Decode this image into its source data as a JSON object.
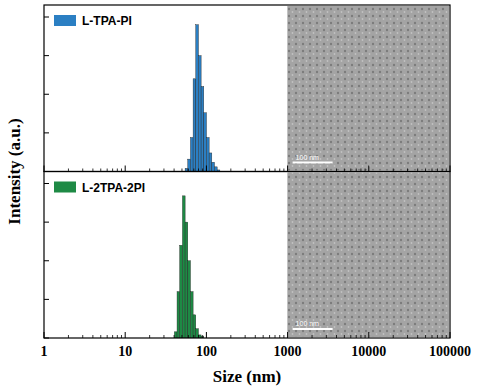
{
  "chart_data": [
    {
      "type": "histogram",
      "y_label": "Intensity (a.u.)",
      "log": "x",
      "legend": "upper left",
      "tick_labels": false,
      "xlim": [
        1,
        100000
      ],
      "xticks": [
        1,
        10,
        100,
        1000,
        10000,
        100000
      ],
      "ylim": [
        0,
        100
      ],
      "yticks": [
        0,
        25,
        50,
        75,
        100
      ],
      "bins": [
        50.7,
        54.7,
        59.0,
        63.6,
        68.6,
        74.0,
        79.8,
        86.1,
        92.9,
        100.2,
        108.1,
        116.6,
        125.8,
        135.7,
        146.4
      ],
      "series": [
        {
          "name": "L-TPA-PI",
          "color": "#2b7fc3",
          "values": [
            0,
            2,
            8,
            22,
            60,
            95,
            75,
            55,
            38,
            22,
            12,
            6,
            3,
            1
          ]
        }
      ],
      "annotations": [
        "100 nm"
      ]
    },
    {
      "type": "histogram",
      "x_label": "Size (nm)",
      "log": "x",
      "legend": "upper left",
      "tick_labels": "x",
      "xlim": [
        1,
        100000
      ],
      "xticks": [
        1,
        10,
        100,
        1000,
        10000,
        100000
      ],
      "ylim": [
        0,
        100
      ],
      "yticks": [
        0,
        25,
        50,
        75,
        100
      ],
      "bins": [
        40.3,
        43.5,
        46.9,
        50.7,
        54.7,
        59.0,
        63.6,
        68.6,
        74.0,
        79.8,
        86.1,
        92.9
      ],
      "series": [
        {
          "name": "L-2TPA-2PI",
          "color": "#1e8a45",
          "values": [
            4,
            30,
            60,
            92,
            75,
            50,
            30,
            15,
            6,
            2,
            1
          ]
        }
      ],
      "annotations": [
        "100 nm"
      ]
    }
  ]
}
